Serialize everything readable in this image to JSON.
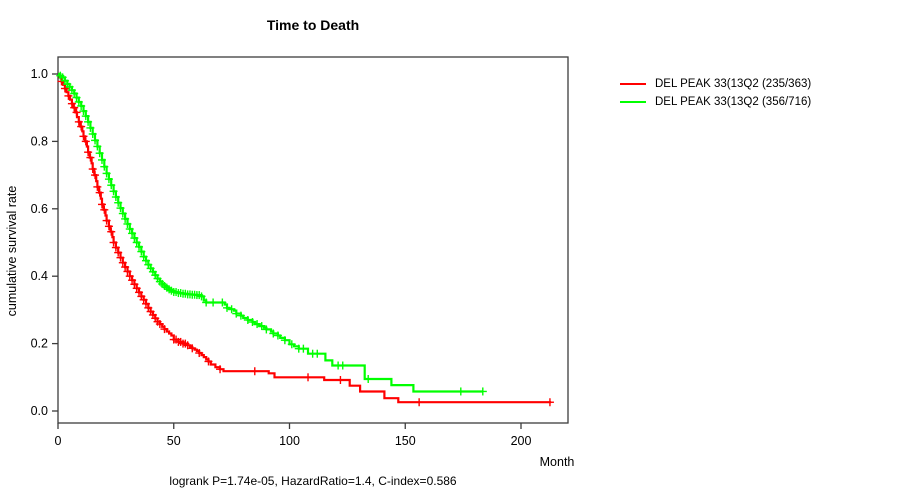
{
  "title": "Time to Death",
  "caption": "logrank P=1.74e-05, HazardRatio=1.4, C-index=0.586",
  "axes": {
    "x_label": "Month",
    "y_label": "cumulative survival rate"
  },
  "legend": {
    "position": "right-outside-top"
  },
  "chart_data": {
    "type": "line",
    "subtype": "kaplan-meier-survival",
    "title": "Time to Death",
    "xlabel": "Month",
    "ylabel": "cumulative survival rate",
    "annotation": "logrank P=1.74e-05, HazardRatio=1.4, C-index=0.586",
    "xlim": [
      0,
      218
    ],
    "ylim": [
      0,
      1.04
    ],
    "x_ticks": [
      0,
      50,
      100,
      150,
      200
    ],
    "y_ticks": [
      0.0,
      0.2,
      0.4,
      0.6,
      0.8,
      1.0
    ],
    "y_tick_labels": [
      "0.0",
      "0.2",
      "0.4",
      "0.6",
      "0.8",
      "1.0"
    ],
    "grid": false,
    "legend_position": "right-outside-top",
    "series": [
      {
        "name": "DEL PEAK 33(13Q2 (235/363)",
        "color": "#ff0000",
        "end_month": 213,
        "steps": [
          [
            0,
            1.0
          ],
          [
            0.7,
            0.99
          ],
          [
            1.5,
            0.978
          ],
          [
            2.2,
            0.968
          ],
          [
            3,
            0.957
          ],
          [
            3.7,
            0.946
          ],
          [
            4.5,
            0.935
          ],
          [
            5.2,
            0.924
          ],
          [
            6,
            0.912
          ],
          [
            6.7,
            0.9
          ],
          [
            7.5,
            0.886
          ],
          [
            8.2,
            0.872
          ],
          [
            9,
            0.858
          ],
          [
            9.7,
            0.844
          ],
          [
            10.5,
            0.83
          ],
          [
            11,
            0.815
          ],
          [
            11.7,
            0.8
          ],
          [
            12.5,
            0.785
          ],
          [
            13,
            0.768
          ],
          [
            13.7,
            0.752
          ],
          [
            14.5,
            0.735
          ],
          [
            15,
            0.718
          ],
          [
            15.7,
            0.7
          ],
          [
            16.5,
            0.682
          ],
          [
            17,
            0.665
          ],
          [
            17.7,
            0.648
          ],
          [
            18.5,
            0.63
          ],
          [
            19,
            0.613
          ],
          [
            19.7,
            0.597
          ],
          [
            20.5,
            0.58
          ],
          [
            21,
            0.565
          ],
          [
            22,
            0.548
          ],
          [
            22.7,
            0.532
          ],
          [
            23.5,
            0.516
          ],
          [
            24,
            0.5
          ],
          [
            25,
            0.485
          ],
          [
            26,
            0.47
          ],
          [
            27,
            0.455
          ],
          [
            28,
            0.44
          ],
          [
            29,
            0.427
          ],
          [
            30,
            0.414
          ],
          [
            31,
            0.4
          ],
          [
            32,
            0.388
          ],
          [
            33,
            0.376
          ],
          [
            34,
            0.364
          ],
          [
            35,
            0.352
          ],
          [
            36,
            0.34
          ],
          [
            37,
            0.33
          ],
          [
            38,
            0.318
          ],
          [
            39,
            0.306
          ],
          [
            40,
            0.295
          ],
          [
            41,
            0.285
          ],
          [
            42,
            0.275
          ],
          [
            43,
            0.265
          ],
          [
            44,
            0.258
          ],
          [
            45,
            0.25
          ],
          [
            46,
            0.243
          ],
          [
            47,
            0.236
          ],
          [
            48,
            0.23
          ],
          [
            49,
            0.224
          ],
          [
            50,
            0.212
          ],
          [
            52,
            0.205
          ],
          [
            54,
            0.2
          ],
          [
            56,
            0.195
          ],
          [
            57,
            0.19
          ],
          [
            58,
            0.186
          ],
          [
            59,
            0.182
          ],
          [
            60,
            0.178
          ],
          [
            61,
            0.172
          ],
          [
            62,
            0.166
          ],
          [
            63,
            0.16
          ],
          [
            64,
            0.153
          ],
          [
            65,
            0.147
          ],
          [
            66,
            0.138
          ],
          [
            68,
            0.13
          ],
          [
            70,
            0.124
          ],
          [
            71.5,
            0.118
          ],
          [
            91,
            0.112
          ],
          [
            93.5,
            0.1
          ],
          [
            115,
            0.092
          ],
          [
            126,
            0.075
          ],
          [
            130.5,
            0.058
          ],
          [
            141,
            0.038
          ],
          [
            147,
            0.026
          ]
        ],
        "censor_months": [
          1.5,
          3,
          4.5,
          6,
          7,
          8,
          9,
          10,
          11,
          12,
          13,
          14,
          15,
          16,
          17,
          18,
          19,
          20,
          21,
          22,
          23,
          24,
          25,
          26,
          27,
          28,
          29,
          30,
          31,
          32,
          33,
          34,
          35,
          36,
          37,
          38,
          39,
          40,
          41,
          42,
          43,
          44,
          46,
          50,
          51,
          52,
          53,
          54,
          55,
          56,
          58,
          61,
          65,
          70,
          85,
          108,
          122,
          156,
          212.5
        ]
      },
      {
        "name": "DEL PEAK 33(13Q2 (356/716)",
        "color": "#00ff00",
        "end_month": 183.5,
        "steps": [
          [
            0,
            1.0
          ],
          [
            1,
            0.995
          ],
          [
            2,
            0.99
          ],
          [
            3,
            0.98
          ],
          [
            4,
            0.97
          ],
          [
            5,
            0.962
          ],
          [
            6,
            0.952
          ],
          [
            7,
            0.942
          ],
          [
            8,
            0.93
          ],
          [
            9,
            0.917
          ],
          [
            10,
            0.905
          ],
          [
            11,
            0.89
          ],
          [
            12,
            0.875
          ],
          [
            13,
            0.858
          ],
          [
            14,
            0.84
          ],
          [
            15,
            0.822
          ],
          [
            16,
            0.803
          ],
          [
            17,
            0.785
          ],
          [
            18,
            0.765
          ],
          [
            19,
            0.745
          ],
          [
            20,
            0.725
          ],
          [
            21,
            0.705
          ],
          [
            22,
            0.688
          ],
          [
            23,
            0.67
          ],
          [
            24,
            0.652
          ],
          [
            25,
            0.635
          ],
          [
            26,
            0.618
          ],
          [
            27,
            0.602
          ],
          [
            28,
            0.586
          ],
          [
            29,
            0.57
          ],
          [
            30,
            0.555
          ],
          [
            31,
            0.54
          ],
          [
            32,
            0.527
          ],
          [
            33,
            0.513
          ],
          [
            34,
            0.5
          ],
          [
            35,
            0.487
          ],
          [
            36,
            0.473
          ],
          [
            37,
            0.458
          ],
          [
            38,
            0.446
          ],
          [
            39,
            0.434
          ],
          [
            40,
            0.423
          ],
          [
            41,
            0.413
          ],
          [
            42,
            0.403
          ],
          [
            43,
            0.393
          ],
          [
            44,
            0.384
          ],
          [
            45,
            0.377
          ],
          [
            46,
            0.371
          ],
          [
            47,
            0.366
          ],
          [
            48,
            0.361
          ],
          [
            49,
            0.357
          ],
          [
            50,
            0.353
          ],
          [
            52,
            0.35
          ],
          [
            54,
            0.348
          ],
          [
            56,
            0.346
          ],
          [
            58,
            0.345
          ],
          [
            60,
            0.344
          ],
          [
            62,
            0.34
          ],
          [
            63,
            0.328
          ],
          [
            64,
            0.322
          ],
          [
            72,
            0.316
          ],
          [
            73,
            0.306
          ],
          [
            74,
            0.302
          ],
          [
            76,
            0.298
          ],
          [
            77,
            0.289
          ],
          [
            79,
            0.283
          ],
          [
            80,
            0.276
          ],
          [
            82,
            0.27
          ],
          [
            84,
            0.264
          ],
          [
            85,
            0.258
          ],
          [
            87,
            0.252
          ],
          [
            89,
            0.247
          ],
          [
            90,
            0.242
          ],
          [
            92,
            0.236
          ],
          [
            93,
            0.23
          ],
          [
            95,
            0.224
          ],
          [
            96,
            0.217
          ],
          [
            98,
            0.21
          ],
          [
            100,
            0.198
          ],
          [
            102,
            0.192
          ],
          [
            104,
            0.185
          ],
          [
            108,
            0.17
          ],
          [
            115.5,
            0.15
          ],
          [
            118.5,
            0.135
          ],
          [
            132.5,
            0.095
          ],
          [
            144,
            0.077
          ],
          [
            153.5,
            0.058
          ]
        ],
        "censor_months": [
          1,
          2,
          3,
          4,
          5,
          6,
          7,
          8,
          9,
          10,
          11,
          12,
          13,
          14,
          15,
          16,
          17,
          18,
          19,
          20,
          21,
          22,
          23,
          24,
          25,
          26,
          27,
          28,
          29,
          30,
          31,
          32,
          33,
          34,
          35,
          36,
          37,
          38,
          39,
          40,
          41,
          42,
          43,
          44,
          45,
          46,
          47,
          48,
          49,
          50,
          51,
          52,
          53,
          54,
          55,
          56,
          57,
          58,
          59,
          60,
          61,
          62,
          64,
          67,
          71,
          73,
          75,
          77,
          79,
          82,
          84,
          86,
          88,
          90,
          93,
          95,
          98,
          101,
          104,
          106,
          110,
          112,
          121,
          123,
          134,
          174,
          183.5
        ]
      }
    ]
  },
  "style": {
    "axis_color": "#3c3c3c",
    "text_color": "#000000",
    "background": "#ffffff"
  }
}
